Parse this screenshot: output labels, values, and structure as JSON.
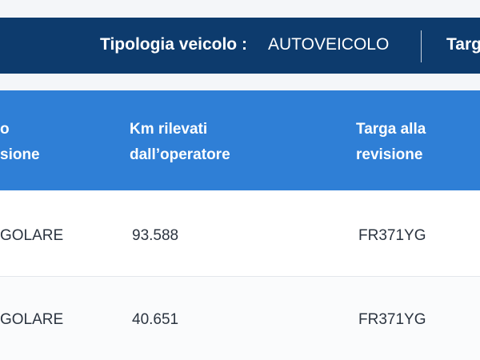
{
  "info_bar": {
    "vehicle_type_label": "Tipologia veicolo :",
    "vehicle_type_value": "AUTOVEICOLO",
    "plate_label": "Targ"
  },
  "table": {
    "headers": [
      [
        "o",
        "sione"
      ],
      [
        "Km rilevati",
        "dall’operatore"
      ],
      [
        "Targa alla",
        "revisione"
      ]
    ],
    "rows": [
      [
        "GOLARE",
        "93.588",
        "FR371YG"
      ],
      [
        "GOLARE",
        "40.651",
        "FR371YG"
      ]
    ]
  }
}
